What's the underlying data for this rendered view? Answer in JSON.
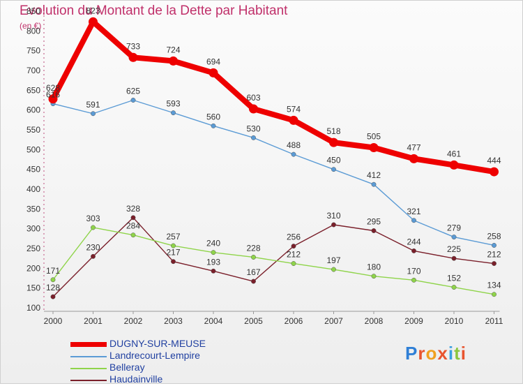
{
  "title": "Evolution du Montant de la Dette par Habitant",
  "unit": "(en €)",
  "brand": {
    "name": "Proxiti",
    "letter_colors": [
      "#2f7fd6",
      "#e8542f",
      "#f0a020",
      "#e8542f",
      "#3aa0e0",
      "#8cc63f",
      "#e8542f"
    ]
  },
  "chart_data": {
    "type": "line",
    "title": "Evolution du Montant de la Dette par Habitant",
    "ylabel": "(en €)",
    "x": [
      "2000",
      "2001",
      "2002",
      "2003",
      "2004",
      "2005",
      "2006",
      "2007",
      "2008",
      "2009",
      "2010",
      "2011"
    ],
    "ylim": [
      100,
      850
    ],
    "yticks": [
      100,
      150,
      200,
      250,
      300,
      350,
      400,
      450,
      500,
      550,
      600,
      650,
      700,
      750,
      800,
      850
    ],
    "grid": false,
    "legend_position": "bottom-left",
    "series": [
      {
        "name": "DUGNY-SUR-MEUSE",
        "color": "#ee0000",
        "emphasis": true,
        "values": [
          628,
          823,
          733,
          724,
          694,
          603,
          574,
          518,
          505,
          477,
          461,
          444
        ]
      },
      {
        "name": "Landrecourt-Lempire",
        "color": "#5b9bd5",
        "emphasis": false,
        "values": [
          616,
          591,
          625,
          593,
          560,
          530,
          488,
          450,
          412,
          321,
          279,
          258
        ]
      },
      {
        "name": "Belleray",
        "color": "#8fd44a",
        "emphasis": false,
        "values": [
          171,
          303,
          284,
          257,
          240,
          228,
          212,
          197,
          180,
          170,
          152,
          134
        ]
      },
      {
        "name": "Haudainville",
        "color": "#7a1f2a",
        "emphasis": false,
        "values": [
          128,
          230,
          328,
          217,
          193,
          167,
          256,
          310,
          295,
          244,
          225,
          212
        ]
      }
    ]
  }
}
